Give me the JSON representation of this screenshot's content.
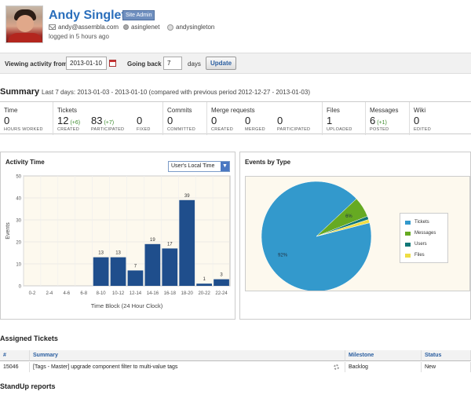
{
  "user": {
    "name": "Andy Singleton",
    "badge": "Site Admin",
    "email": "andy@assembla.com",
    "handle": "asinglenet",
    "skype": "andysingleton",
    "last_login": "logged in 5 hours ago"
  },
  "activity": {
    "from_label": "Viewing activity from",
    "from_value": "2013-01-10",
    "back_label": "Going back",
    "back_value": "7",
    "days_label": "days",
    "update_label": "Update"
  },
  "summary": {
    "title": "Summary",
    "range": "Last 7 days: 2013-01-03 - 2013-01-10 (compared with previous period 2012-12-27 - 2013-01-03)",
    "groups": [
      {
        "label": "Time",
        "items": [
          {
            "value": "0",
            "delta": "",
            "sub": "HOURS WORKED"
          }
        ]
      },
      {
        "label": "Tickets",
        "items": [
          {
            "value": "12",
            "delta": "(+6)",
            "sub": "CREATED"
          },
          {
            "value": "83",
            "delta": "(+7)",
            "sub": "PARTICIPATED"
          },
          {
            "value": "0",
            "delta": "",
            "sub": "FIXED"
          }
        ]
      },
      {
        "label": "Commits",
        "items": [
          {
            "value": "0",
            "delta": "",
            "sub": "COMMITTED"
          }
        ]
      },
      {
        "label": "Merge requests",
        "items": [
          {
            "value": "0",
            "delta": "",
            "sub": "CREATED"
          },
          {
            "value": "0",
            "delta": "",
            "sub": "MERGED"
          },
          {
            "value": "0",
            "delta": "",
            "sub": "PARTICIPATED"
          }
        ]
      },
      {
        "label": "Files",
        "items": [
          {
            "value": "1",
            "delta": "",
            "sub": "UPLOADED"
          }
        ]
      },
      {
        "label": "Messages",
        "items": [
          {
            "value": "6",
            "delta": "(+1)",
            "sub": "POSTED"
          }
        ]
      },
      {
        "label": "Wiki",
        "items": [
          {
            "value": "0",
            "delta": "",
            "sub": "EDITED"
          }
        ]
      }
    ]
  },
  "activity_time": {
    "title": "Activity Time",
    "timezone": "User's Local Time"
  },
  "events_by_type": {
    "title": "Events by Type"
  },
  "chart_data": [
    {
      "type": "bar",
      "title": "Activity Time",
      "xlabel": "Time Block (24 Hour Clock)",
      "ylabel": "Events",
      "ylim": [
        0,
        50
      ],
      "yticks": [
        0,
        10,
        20,
        30,
        40,
        50
      ],
      "categories": [
        "0-2",
        "2-4",
        "4-6",
        "6-8",
        "8-10",
        "10-12",
        "12-14",
        "14-16",
        "16-18",
        "18-20",
        "20-22",
        "22-24"
      ],
      "values": [
        0,
        0,
        0,
        0,
        13,
        13,
        7,
        19,
        17,
        39,
        1,
        3
      ],
      "bar_color": "#1f4e8c",
      "grid": true
    },
    {
      "type": "pie",
      "title": "Events by Type",
      "categories": [
        "Tickets",
        "Messages",
        "Users",
        "Files"
      ],
      "values": [
        92,
        6,
        1,
        1
      ],
      "labels": [
        "92%",
        "6%",
        "",
        ""
      ],
      "colors": [
        "#3399cc",
        "#66aa22",
        "#117777",
        "#eedd44"
      ],
      "legend": "right"
    }
  ],
  "assigned": {
    "title": "Assigned Tickets",
    "columns": [
      "#",
      "Summary",
      "Milestone",
      "Status"
    ],
    "rows": [
      {
        "id": "15046",
        "summary": "[Tags - Master] upgrade component filter to multi-value tags",
        "milestone": "Backlog",
        "status": "New"
      }
    ]
  },
  "standup": {
    "title": "StandUp reports"
  }
}
